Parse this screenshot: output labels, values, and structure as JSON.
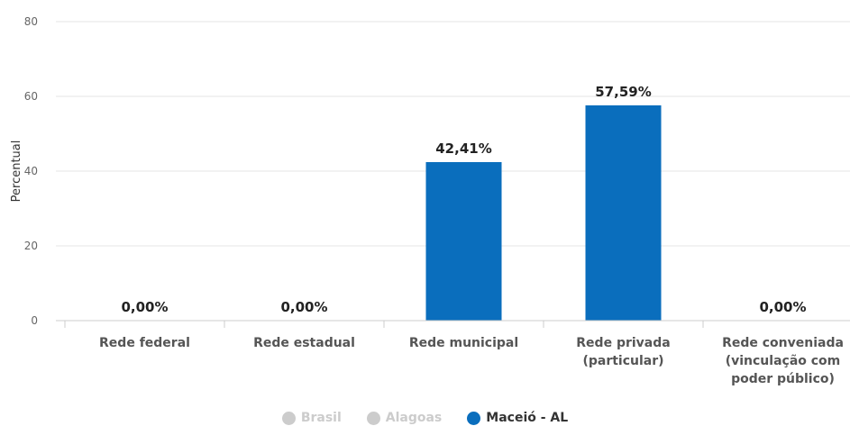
{
  "chart_data": {
    "type": "bar",
    "ylabel": "Percentual",
    "ylim": [
      0,
      80
    ],
    "yticks": [
      0,
      20,
      40,
      60,
      80
    ],
    "grid": true,
    "categories": [
      [
        "Rede federal"
      ],
      [
        "Rede estadual"
      ],
      [
        "Rede municipal"
      ],
      [
        "Rede privada",
        "(particular)"
      ],
      [
        "Rede conveniada",
        "(vinculação com",
        "poder público)"
      ]
    ],
    "series": [
      {
        "name": "Maceió - AL",
        "color": "#0a6ebd",
        "values": [
          0.0,
          0.0,
          42.41,
          57.59,
          0.0
        ],
        "labels": [
          "0,00%",
          "0,00%",
          "42,41%",
          "57,59%",
          "0,00%"
        ]
      }
    ],
    "legend": {
      "position": "bottom",
      "items": [
        {
          "label": "Brasil",
          "color": "#cccccc",
          "active": false
        },
        {
          "label": "Alagoas",
          "color": "#cccccc",
          "active": false
        },
        {
          "label": "Maceió - AL",
          "color": "#0a6ebd",
          "active": true
        }
      ]
    }
  }
}
